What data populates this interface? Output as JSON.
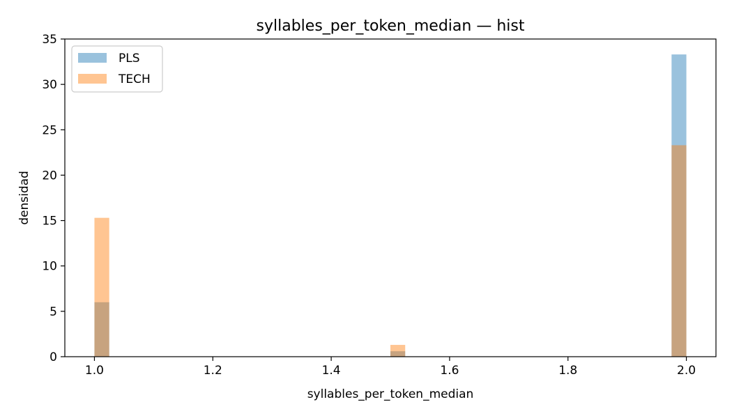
{
  "chart_data": {
    "type": "bar",
    "title": "syllables_per_token_median — hist",
    "xlabel": "syllables_per_token_median",
    "ylabel": "densidad",
    "xlim": [
      0.95,
      2.05
    ],
    "ylim": [
      0,
      35
    ],
    "xticks": [
      "1.0",
      "1.2",
      "1.4",
      "1.6",
      "1.8",
      "2.0"
    ],
    "yticks": [
      "0",
      "5",
      "10",
      "15",
      "20",
      "25",
      "30",
      "35"
    ],
    "bin_width": 0.025,
    "legend_position": "upper-left",
    "grid": false,
    "series": [
      {
        "name": "PLS",
        "color": "#1f77b4",
        "opacity": 0.45,
        "bins": [
          {
            "x0": 1.0,
            "x1": 1.025,
            "value": 6.0
          },
          {
            "x0": 1.5,
            "x1": 1.525,
            "value": 0.6
          },
          {
            "x0": 1.975,
            "x1": 2.0,
            "value": 33.3
          }
        ]
      },
      {
        "name": "TECH",
        "color": "#ff7f0e",
        "opacity": 0.45,
        "bins": [
          {
            "x0": 1.0,
            "x1": 1.025,
            "value": 15.3
          },
          {
            "x0": 1.5,
            "x1": 1.525,
            "value": 1.3
          },
          {
            "x0": 1.975,
            "x1": 2.0,
            "value": 23.3
          }
        ]
      }
    ]
  }
}
